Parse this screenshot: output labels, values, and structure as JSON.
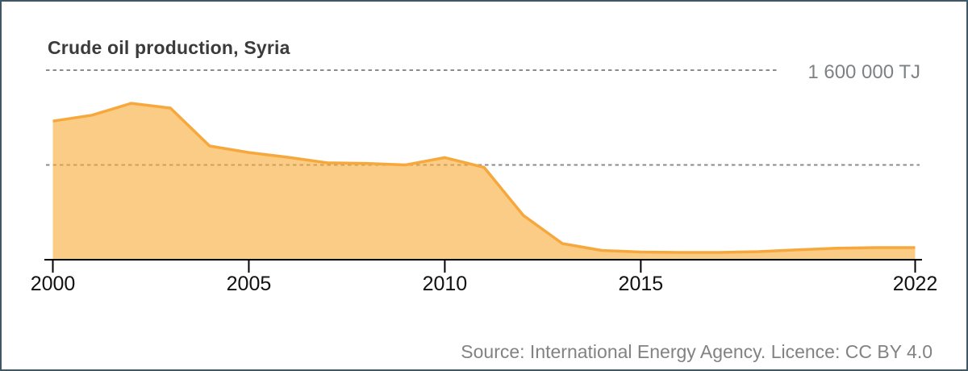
{
  "chart_data": {
    "type": "area",
    "title": "Crude oil production, Syria",
    "unit": "TJ",
    "x": [
      2000,
      2001,
      2002,
      2003,
      2004,
      2005,
      2006,
      2007,
      2008,
      2009,
      2010,
      2011,
      2012,
      2013,
      2014,
      2015,
      2016,
      2017,
      2018,
      2019,
      2020,
      2021,
      2022
    ],
    "values": [
      1170000,
      1220000,
      1320000,
      1280000,
      960000,
      905000,
      865000,
      818000,
      813000,
      800000,
      862000,
      780000,
      375000,
      136000,
      78000,
      65000,
      61000,
      61000,
      68000,
      84000,
      97000,
      102000,
      102000
    ],
    "ylim": [
      0,
      1600000
    ],
    "gridline_values": [
      1600000,
      800000
    ],
    "gridline_label": "1 600 000 TJ",
    "x_ticks": [
      2000,
      2005,
      2010,
      2015,
      2022
    ],
    "xlabel": "",
    "ylabel": "",
    "legend": "none",
    "grid": "dashed-horizontal",
    "source": "Source: International Energy Agency. Licence: CC BY 4.0",
    "colors": {
      "line": "#f6a83c",
      "area_fill": "rgba(249,172,58,0.62)",
      "gridline": "#8c8c8c",
      "axis": "#000000",
      "border": "#3e5866",
      "title_text": "#3b3b3b",
      "muted_text": "#7e8285"
    }
  }
}
